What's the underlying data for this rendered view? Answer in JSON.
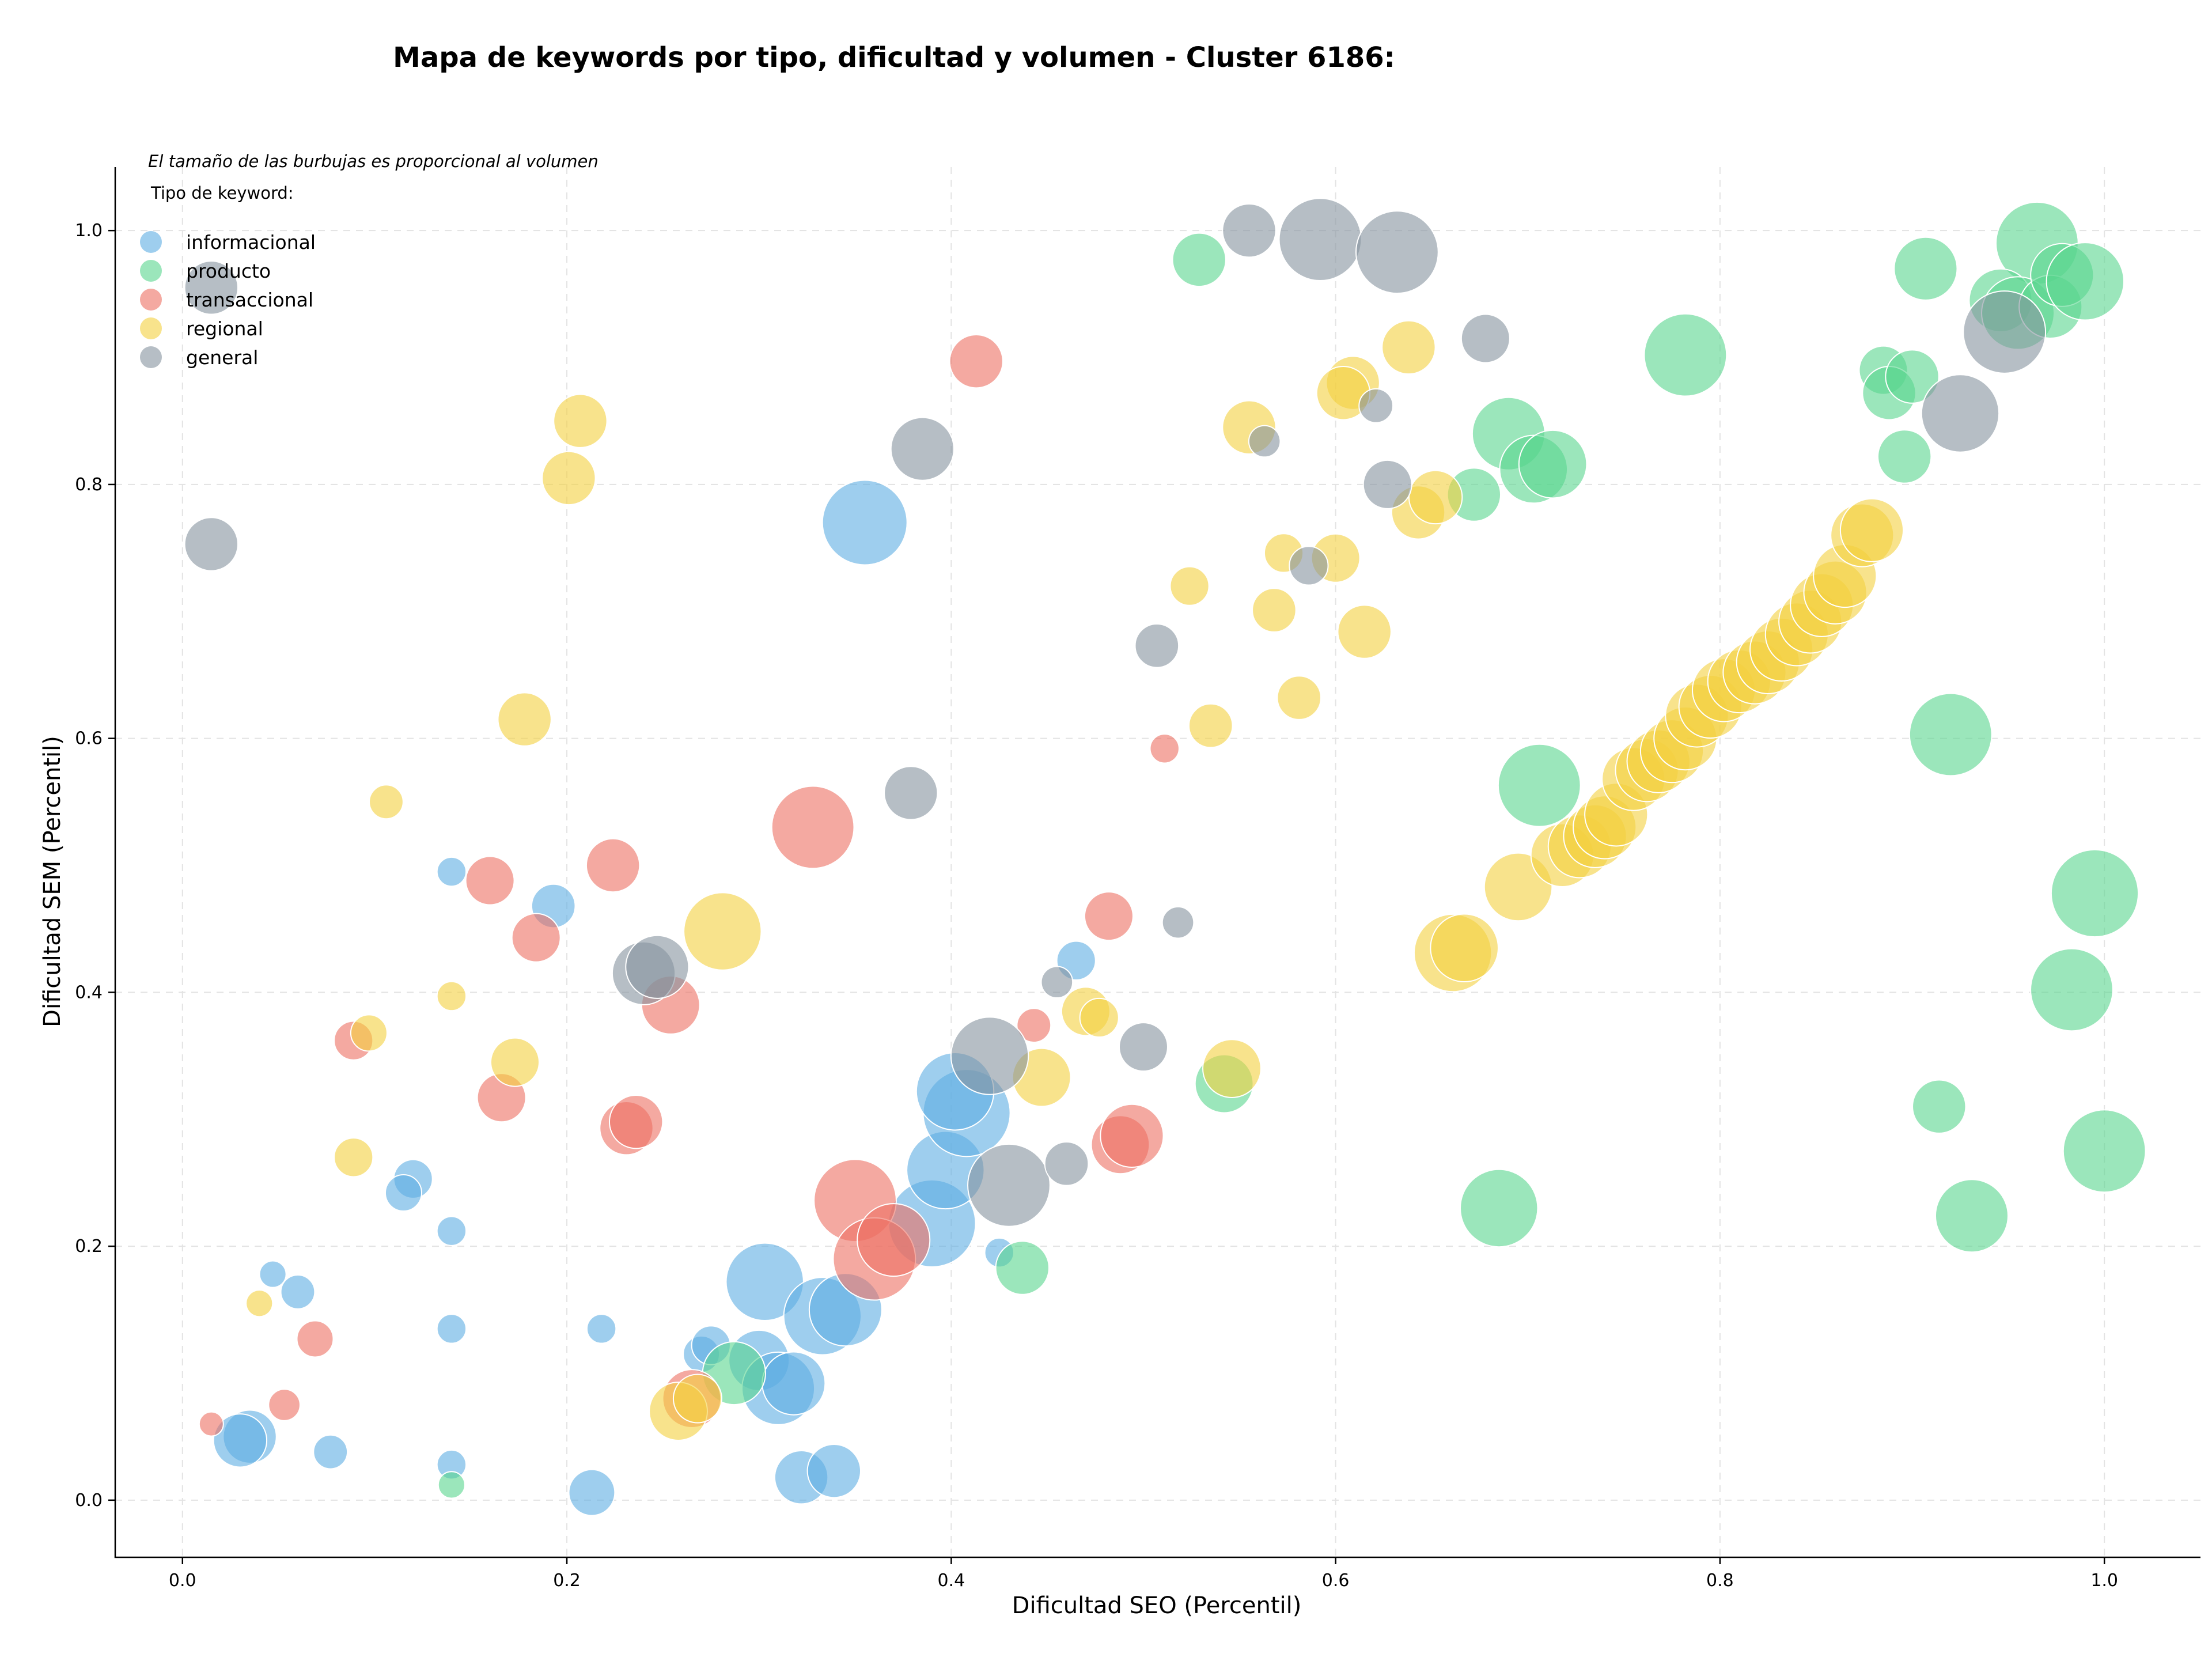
{
  "chart_data": {
    "type": "scatter",
    "title": "Mapa de keywords por tipo, dificultad y volumen - Cluster 6186:",
    "xlabel": "Dificultad SEO (Percentil)",
    "ylabel": "Dificultad SEM (Percentil)",
    "xlim": [
      -0.035,
      1.05
    ],
    "ylim": [
      -0.045,
      1.05
    ],
    "x_ticks": [
      0.0,
      0.2,
      0.4,
      0.6,
      0.8,
      1.0
    ],
    "y_ticks": [
      0.0,
      0.2,
      0.4,
      0.6,
      0.8,
      1.0
    ],
    "x_tick_labels": [
      "0.0",
      "0.2",
      "0.4",
      "0.6",
      "0.8",
      "1.0"
    ],
    "y_tick_labels": [
      "0.0",
      "0.2",
      "0.4",
      "0.6",
      "0.8",
      "1.0"
    ],
    "grid": true,
    "size_note": "El tamaño de las burbujas es proporcional al volumen",
    "legend_title": "Tipo de keyword:",
    "legend_position": "top-left",
    "series": [
      {
        "name": "informacional",
        "color": "#5dade2",
        "points": [
          [
            0.355,
            0.77,
            3.5
          ],
          [
            0.14,
            0.495,
            1.2
          ],
          [
            0.193,
            0.468,
            1.8
          ],
          [
            0.465,
            0.425,
            1.6
          ],
          [
            0.12,
            0.253,
            1.6
          ],
          [
            0.115,
            0.242,
            1.5
          ],
          [
            0.14,
            0.212,
            1.2
          ],
          [
            0.047,
            0.178,
            1.1
          ],
          [
            0.06,
            0.164,
            1.4
          ],
          [
            0.14,
            0.135,
            1.2
          ],
          [
            0.218,
            0.135,
            1.2
          ],
          [
            0.425,
            0.195,
            1.2
          ],
          [
            0.035,
            0.05,
            2.2
          ],
          [
            0.03,
            0.047,
            2.2
          ],
          [
            0.077,
            0.038,
            1.4
          ],
          [
            0.14,
            0.028,
            1.2
          ],
          [
            0.213,
            0.006,
            1.9
          ],
          [
            0.322,
            0.018,
            2.2
          ],
          [
            0.339,
            0.023,
            2.2
          ],
          [
            0.27,
            0.115,
            1.5
          ],
          [
            0.275,
            0.122,
            1.6
          ],
          [
            0.3,
            0.11,
            2.5
          ],
          [
            0.31,
            0.088,
            3.0
          ],
          [
            0.318,
            0.092,
            2.6
          ],
          [
            0.303,
            0.172,
            3.2
          ],
          [
            0.333,
            0.145,
            3.2
          ],
          [
            0.345,
            0.15,
            3.0
          ],
          [
            0.39,
            0.218,
            3.6
          ],
          [
            0.397,
            0.26,
            3.2
          ],
          [
            0.408,
            0.305,
            3.6
          ],
          [
            0.402,
            0.322,
            3.2
          ]
        ]
      },
      {
        "name": "producto",
        "color": "#58d68d",
        "points": [
          [
            0.529,
            0.977,
            2.2
          ],
          [
            0.965,
            0.99,
            3.4
          ],
          [
            0.907,
            0.97,
            2.6
          ],
          [
            0.946,
            0.945,
            2.6
          ],
          [
            0.955,
            0.935,
            3.0
          ],
          [
            0.972,
            0.94,
            2.6
          ],
          [
            0.978,
            0.965,
            2.6
          ],
          [
            0.99,
            0.96,
            3.2
          ],
          [
            0.782,
            0.902,
            3.4
          ],
          [
            0.885,
            0.89,
            2.0
          ],
          [
            0.888,
            0.872,
            2.2
          ],
          [
            0.9,
            0.885,
            2.2
          ],
          [
            0.896,
            0.822,
            2.2
          ],
          [
            0.69,
            0.84,
            3.0
          ],
          [
            0.703,
            0.812,
            2.8
          ],
          [
            0.713,
            0.816,
            2.8
          ],
          [
            0.672,
            0.792,
            2.2
          ],
          [
            0.706,
            0.563,
            3.4
          ],
          [
            0.92,
            0.603,
            3.4
          ],
          [
            0.995,
            0.478,
            3.6
          ],
          [
            0.983,
            0.402,
            3.4
          ],
          [
            1.0,
            0.275,
            3.4
          ],
          [
            0.914,
            0.31,
            2.2
          ],
          [
            0.931,
            0.224,
            3.0
          ],
          [
            0.685,
            0.23,
            3.2
          ],
          [
            0.542,
            0.328,
            2.4
          ],
          [
            0.437,
            0.183,
            2.2
          ],
          [
            0.287,
            0.1,
            2.6
          ],
          [
            0.14,
            0.012,
            1.1
          ]
        ]
      },
      {
        "name": "transaccional",
        "color": "#ec7063",
        "points": [
          [
            0.413,
            0.897,
            2.2
          ],
          [
            0.328,
            0.53,
            3.4
          ],
          [
            0.511,
            0.592,
            1.2
          ],
          [
            0.16,
            0.488,
            2.0
          ],
          [
            0.224,
            0.5,
            2.2
          ],
          [
            0.184,
            0.443,
            2.0
          ],
          [
            0.254,
            0.39,
            2.4
          ],
          [
            0.482,
            0.46,
            2.0
          ],
          [
            0.443,
            0.374,
            1.4
          ],
          [
            0.089,
            0.362,
            1.6
          ],
          [
            0.166,
            0.317,
            2.0
          ],
          [
            0.231,
            0.293,
            2.2
          ],
          [
            0.236,
            0.298,
            2.2
          ],
          [
            0.35,
            0.236,
            3.4
          ],
          [
            0.36,
            0.19,
            3.4
          ],
          [
            0.37,
            0.205,
            3.0
          ],
          [
            0.488,
            0.28,
            2.4
          ],
          [
            0.494,
            0.287,
            2.6
          ],
          [
            0.069,
            0.127,
            1.5
          ],
          [
            0.053,
            0.075,
            1.3
          ],
          [
            0.015,
            0.06,
            1.0
          ],
          [
            0.265,
            0.08,
            2.4
          ]
        ]
      },
      {
        "name": "regional",
        "color": "#f4d03f",
        "points": [
          [
            0.207,
            0.85,
            2.2
          ],
          [
            0.201,
            0.805,
            2.2
          ],
          [
            0.178,
            0.615,
            2.2
          ],
          [
            0.106,
            0.55,
            1.4
          ],
          [
            0.281,
            0.448,
            3.2
          ],
          [
            0.14,
            0.397,
            1.2
          ],
          [
            0.097,
            0.368,
            1.5
          ],
          [
            0.173,
            0.345,
            2.0
          ],
          [
            0.447,
            0.333,
            2.4
          ],
          [
            0.089,
            0.27,
            1.6
          ],
          [
            0.04,
            0.155,
            1.1
          ],
          [
            0.258,
            0.07,
            2.4
          ],
          [
            0.268,
            0.08,
            2.0
          ],
          [
            0.47,
            0.385,
            2.0
          ],
          [
            0.477,
            0.38,
            1.6
          ],
          [
            0.546,
            0.34,
            2.4
          ],
          [
            0.638,
            0.908,
            2.2
          ],
          [
            0.609,
            0.88,
            2.2
          ],
          [
            0.604,
            0.872,
            2.2
          ],
          [
            0.555,
            0.845,
            2.2
          ],
          [
            0.643,
            0.778,
            2.2
          ],
          [
            0.652,
            0.79,
            2.2
          ],
          [
            0.573,
            0.746,
            1.6
          ],
          [
            0.6,
            0.742,
            2.0
          ],
          [
            0.524,
            0.72,
            1.6
          ],
          [
            0.568,
            0.701,
            1.8
          ],
          [
            0.615,
            0.684,
            2.2
          ],
          [
            0.581,
            0.632,
            1.8
          ],
          [
            0.535,
            0.61,
            1.8
          ],
          [
            0.695,
            0.483,
            2.8
          ],
          [
            0.661,
            0.431,
            3.2
          ],
          [
            0.667,
            0.435,
            2.8
          ],
          [
            0.718,
            0.508,
            2.6
          ],
          [
            0.727,
            0.515,
            2.6
          ],
          [
            0.735,
            0.523,
            2.6
          ],
          [
            0.74,
            0.53,
            2.6
          ],
          [
            0.746,
            0.54,
            2.6
          ],
          [
            0.755,
            0.568,
            2.6
          ],
          [
            0.762,
            0.575,
            2.6
          ],
          [
            0.768,
            0.582,
            2.6
          ],
          [
            0.775,
            0.59,
            2.6
          ],
          [
            0.782,
            0.6,
            2.6
          ],
          [
            0.788,
            0.618,
            2.6
          ],
          [
            0.795,
            0.625,
            2.6
          ],
          [
            0.802,
            0.638,
            2.6
          ],
          [
            0.81,
            0.645,
            2.6
          ],
          [
            0.818,
            0.652,
            2.6
          ],
          [
            0.825,
            0.66,
            2.6
          ],
          [
            0.832,
            0.67,
            2.6
          ],
          [
            0.84,
            0.682,
            2.6
          ],
          [
            0.847,
            0.692,
            2.6
          ],
          [
            0.853,
            0.705,
            2.6
          ],
          [
            0.86,
            0.715,
            2.6
          ],
          [
            0.865,
            0.728,
            2.6
          ],
          [
            0.874,
            0.76,
            2.6
          ],
          [
            0.879,
            0.764,
            2.6
          ]
        ]
      },
      {
        "name": "general",
        "color": "#85929e",
        "points": [
          [
            0.555,
            1.0,
            2.2
          ],
          [
            0.592,
            0.993,
            3.4
          ],
          [
            0.632,
            0.983,
            3.4
          ],
          [
            0.678,
            0.915,
            2.0
          ],
          [
            0.621,
            0.862,
            1.4
          ],
          [
            0.563,
            0.834,
            1.3
          ],
          [
            0.385,
            0.828,
            2.6
          ],
          [
            0.627,
            0.8,
            2.0
          ],
          [
            0.586,
            0.736,
            1.6
          ],
          [
            0.507,
            0.673,
            1.8
          ],
          [
            0.379,
            0.557,
            2.2
          ],
          [
            0.518,
            0.455,
            1.3
          ],
          [
            0.455,
            0.408,
            1.3
          ],
          [
            0.24,
            0.415,
            2.6
          ],
          [
            0.247,
            0.42,
            2.6
          ],
          [
            0.42,
            0.35,
            3.2
          ],
          [
            0.5,
            0.357,
            2.0
          ],
          [
            0.43,
            0.248,
            3.4
          ],
          [
            0.46,
            0.265,
            1.8
          ],
          [
            0.925,
            0.856,
            3.2
          ],
          [
            0.948,
            0.92,
            3.4
          ],
          [
            0.015,
            0.753,
            2.2
          ],
          [
            0.015,
            0.955,
            2.2
          ]
        ]
      }
    ]
  }
}
